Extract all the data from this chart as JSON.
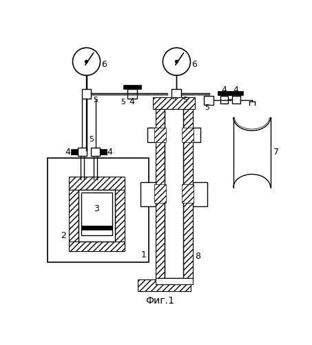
{
  "title": "Фиг.1",
  "bg_color": "#ffffff",
  "line_color": "#000000",
  "fig_width": 4.53,
  "fig_height": 5.0,
  "dpi": 100
}
